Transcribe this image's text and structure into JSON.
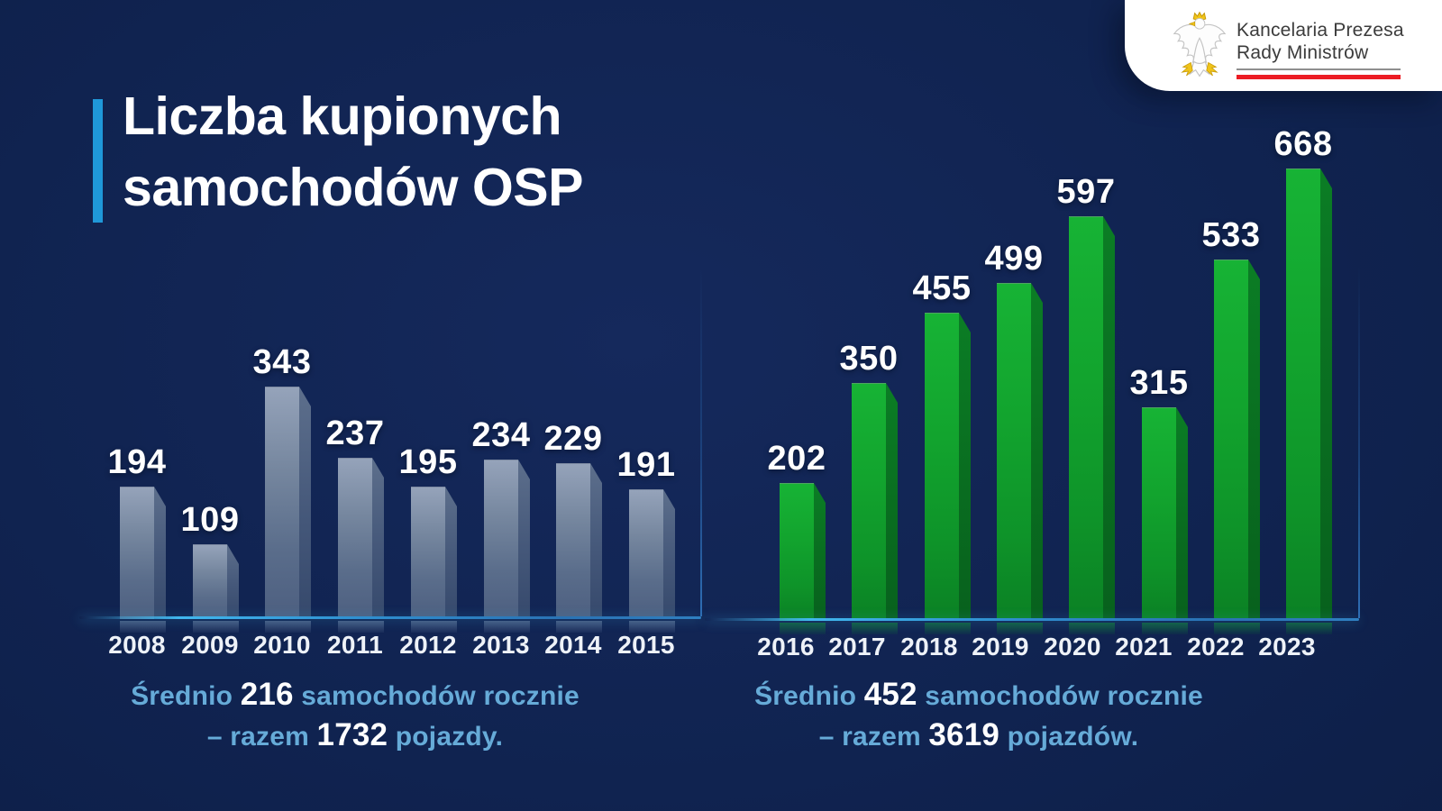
{
  "logo": {
    "line1": "Kancelaria Prezesa",
    "line2": "Rady Ministrów",
    "eagle_icon": "polish-eagle-emblem",
    "red_stripe_color": "#ec1c24"
  },
  "title": {
    "line1": "Liczba kupionych",
    "line2": "samochodów OSP",
    "accent_color": "#1f98d9"
  },
  "colors": {
    "background": "#102350",
    "baseline_glow": "#41b7ee",
    "gray_bar": "#76879f",
    "green_bar": "#12a42e",
    "caption_blue": "#66abd8"
  },
  "chart_data": [
    {
      "type": "bar",
      "title": "",
      "categories": [
        "2008",
        "2009",
        "2010",
        "2011",
        "2012",
        "2013",
        "2014",
        "2015"
      ],
      "values": [
        194,
        109,
        343,
        237,
        195,
        234,
        229,
        191
      ],
      "bar_color": "#76879f",
      "value_label_color": "#ffffff",
      "xlabel": "",
      "ylabel": "",
      "legend": "none",
      "grid": false,
      "caption": {
        "lead": "Średnio ",
        "average": "216",
        "after_average": " samochodów rocznie",
        "line2_lead": "– razem ",
        "total": "1732",
        "after_total": " pojazdy."
      }
    },
    {
      "type": "bar",
      "title": "",
      "categories": [
        "2016",
        "2017",
        "2018",
        "2019",
        "2020",
        "2021",
        "2022",
        "2023"
      ],
      "values": [
        202,
        350,
        455,
        499,
        597,
        315,
        533,
        668
      ],
      "bar_color": "#12a42e",
      "value_label_color": "#ffffff",
      "xlabel": "",
      "ylabel": "",
      "legend": "none",
      "grid": false,
      "caption": {
        "lead": "Średnio ",
        "average": "452",
        "after_average": " samochodów rocznie",
        "line2_lead": "– razem ",
        "total": "3619",
        "after_total": " pojazdów."
      }
    }
  ]
}
